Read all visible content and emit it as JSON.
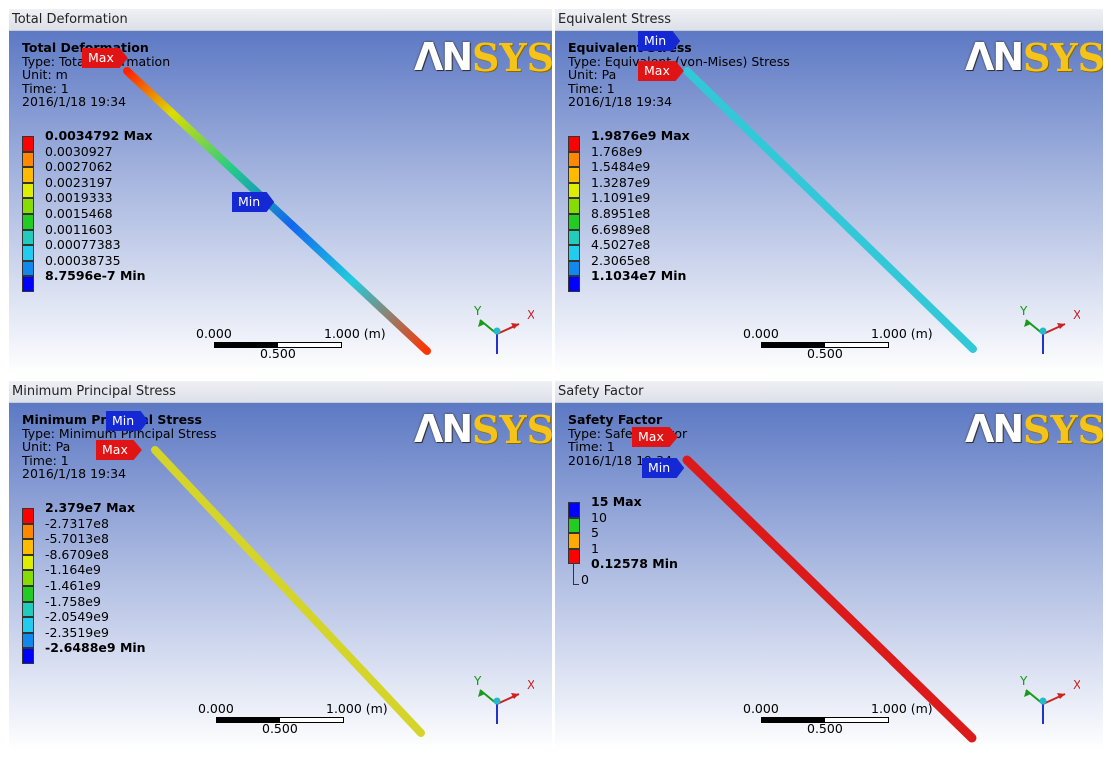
{
  "logo": {
    "part1": "ΛΝ",
    "part2": "SYS"
  },
  "triad": {
    "x": "X",
    "y": "Y"
  },
  "scale": {
    "left": "0.000",
    "right": "1.000 (m)",
    "mid": "0.500"
  },
  "panels": [
    {
      "header": "Total Deformation",
      "title": "Total Deformation",
      "type": "Type: Total Deformation",
      "line3": "Unit: m",
      "line4": "Time: 1",
      "line5": "2016/1/18 19:34",
      "max_tag": "Max",
      "min_tag": "Min",
      "legend": {
        "colors": [
          "#ff0000",
          "#ff8800",
          "#ffbb00",
          "#ddee00",
          "#88dd00",
          "#22cc22",
          "#22ccbb",
          "#22ccee",
          "#1188ee",
          "#0000ff"
        ],
        "labels": [
          "0.0034792 Max",
          "0.0030927",
          "0.0027062",
          "0.0023197",
          "0.0019333",
          "0.0015468",
          "0.0011603",
          "0.00077383",
          "0.00038735",
          "8.7596e-7 Min"
        ]
      }
    },
    {
      "header": "Equivalent Stress",
      "title": "Equivalent Stress",
      "type": "Type: Equivalent (von-Mises) Stress",
      "line3": "Unit: Pa",
      "line4": "Time: 1",
      "line5": "2016/1/18 19:34",
      "max_tag": "Max",
      "min_tag": "Min",
      "legend": {
        "colors": [
          "#ff0000",
          "#ff8800",
          "#ffbb00",
          "#ddee00",
          "#88dd00",
          "#22cc22",
          "#22ccbb",
          "#22ccee",
          "#1188ee",
          "#0000ff"
        ],
        "labels": [
          "1.9876e9 Max",
          "1.768e9",
          "1.5484e9",
          "1.3287e9",
          "1.1091e9",
          "8.8951e8",
          "6.6989e8",
          "4.5027e8",
          "2.3065e8",
          "1.1034e7 Min"
        ]
      }
    },
    {
      "header": "Minimum Principal Stress",
      "title": "Minimum Principal Stress",
      "type": "Type: Minimum Principal Stress",
      "line3": "Unit: Pa",
      "line4": "Time: 1",
      "line5": "2016/1/18 19:34",
      "max_tag": "Max",
      "min_tag": "Min",
      "legend": {
        "colors": [
          "#ff0000",
          "#ff8800",
          "#ffbb00",
          "#ddee00",
          "#88dd00",
          "#22cc22",
          "#22ccbb",
          "#22ccee",
          "#1188ee",
          "#0000ff"
        ],
        "labels": [
          "2.379e7 Max",
          "-2.7317e8",
          "-5.7013e8",
          "-8.6709e8",
          "-1.164e9",
          "-1.461e9",
          "-1.758e9",
          "-2.0549e9",
          "-2.3519e9",
          "-2.6488e9 Min"
        ]
      }
    },
    {
      "header": "Safety Factor",
      "title": "Safety Factor",
      "type": "Type: Safety Factor",
      "line3": "Time: 1",
      "line4": "2016/1/18 19:34",
      "line5": "",
      "max_tag": "Max",
      "min_tag": "Min",
      "legend": {
        "colors": [
          "#0000ff",
          "#22cc22",
          "#ffaa00",
          "#ff0000"
        ],
        "labels": [
          "15 Max",
          "10",
          "5",
          "1",
          "0.12578 Min",
          "0"
        ]
      }
    }
  ]
}
